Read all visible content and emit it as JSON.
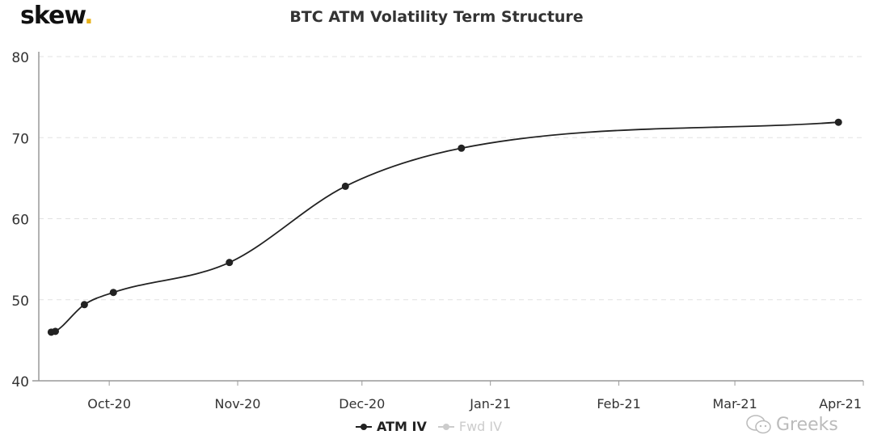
{
  "logo": {
    "text": "skew",
    "dot": ".",
    "dot_color": "#e8b21a"
  },
  "watermark": {
    "text": "Greeks",
    "icon": "wechat-icon"
  },
  "chart_data": {
    "type": "line",
    "title": "BTC ATM Volatility Term Structure",
    "xlabel": "",
    "ylabel": "",
    "ylim": [
      40,
      80
    ],
    "xlim": [
      "2020-09-14",
      "2021-04-01"
    ],
    "yticks": [
      40,
      50,
      60,
      70,
      80
    ],
    "xticks": [
      {
        "date": "2020-10-01",
        "label": "Oct-20"
      },
      {
        "date": "2020-11-01",
        "label": "Nov-20"
      },
      {
        "date": "2020-12-01",
        "label": "Dec-20"
      },
      {
        "date": "2021-01-01",
        "label": "Jan-21"
      },
      {
        "date": "2021-02-01",
        "label": "Feb-21"
      },
      {
        "date": "2021-03-01",
        "label": "Mar-21"
      },
      {
        "date": "2021-04-01",
        "label": "Apr-21"
      }
    ],
    "grid": "horizontal dashed",
    "legend_position": "bottom",
    "series": [
      {
        "name": "ATM IV",
        "color": "#222222",
        "visible": true,
        "x": [
          "2020-09-17",
          "2020-09-18",
          "2020-09-25",
          "2020-10-02",
          "2020-10-30",
          "2020-11-27",
          "2020-12-25",
          "2021-03-26"
        ],
        "y": [
          46.0,
          46.1,
          49.4,
          50.9,
          54.6,
          64.0,
          68.7,
          71.9
        ]
      },
      {
        "name": "Fwd IV",
        "color": "#cccccc",
        "visible": false,
        "x": [],
        "y": []
      }
    ]
  }
}
